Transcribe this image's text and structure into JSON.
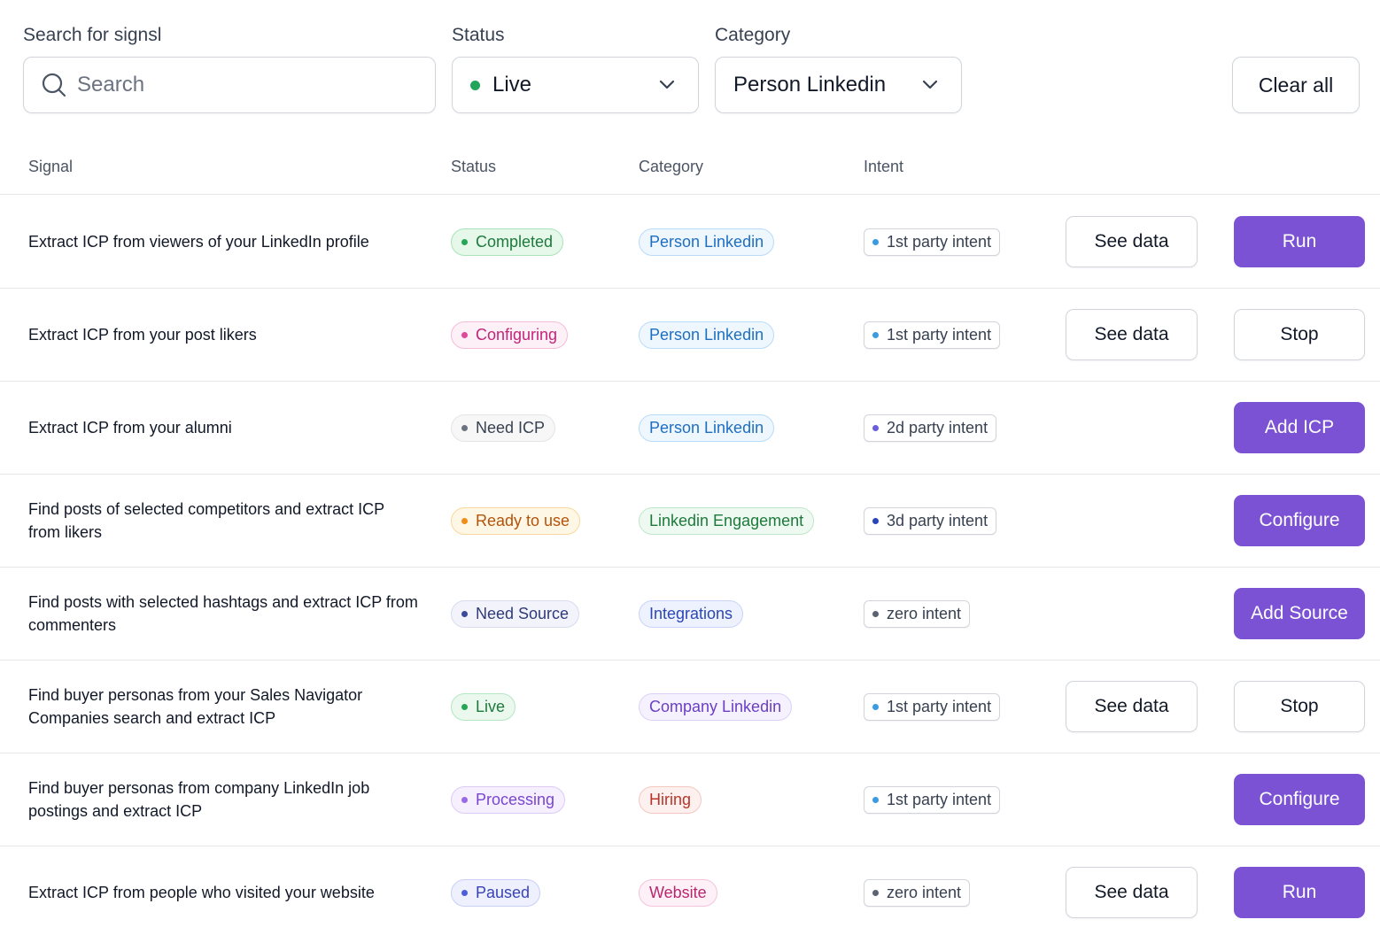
{
  "filters": {
    "search_label": "Search for signsl",
    "search_placeholder": "Search",
    "status_label": "Status",
    "status_value": "Live",
    "status_dot_color": "#22a55b",
    "category_label": "Category",
    "category_value": "Person Linkedin",
    "clear_label": "Clear all"
  },
  "table": {
    "headers": {
      "signal": "Signal",
      "status": "Status",
      "category": "Category",
      "intent": "Intent"
    },
    "rows": [
      {
        "signal": "Extract ICP from viewers of your LinkedIn profile",
        "status": "Completed",
        "category": "Person Linkedin",
        "intent": "1st party intent",
        "see_data": "See data",
        "action": "Run"
      },
      {
        "signal": "Extract ICP from your post likers",
        "status": "Configuring",
        "category": "Person Linkedin",
        "intent": "1st party intent",
        "see_data": "See data",
        "action": "Stop"
      },
      {
        "signal": "Extract ICP from your alumni",
        "status": "Need ICP",
        "category": "Person Linkedin",
        "intent": "2d party intent",
        "see_data": null,
        "action": "Add ICP"
      },
      {
        "signal": "Find posts of selected competitors and extract ICP from likers",
        "status": "Ready to use",
        "category": "Linkedin Engagement",
        "intent": "3d party intent",
        "see_data": null,
        "action": "Configure"
      },
      {
        "signal": "Find posts with selected hashtags and extract ICP from commenters",
        "status": "Need Source",
        "category": "Integrations",
        "intent": "zero intent",
        "see_data": null,
        "action": "Add Source"
      },
      {
        "signal": "Find buyer personas from your Sales Navigator Companies search and extract ICP",
        "status": "Live",
        "category": "Company Linkedin",
        "intent": "1st party intent",
        "see_data": "See data",
        "action": "Stop"
      },
      {
        "signal": "Find buyer personas from company LinkedIn job postings and extract ICP",
        "status": "Processing",
        "category": "Hiring",
        "intent": "1st party intent",
        "see_data": null,
        "action": "Configure"
      },
      {
        "signal": "Extract ICP from people who visited your website",
        "status": "Paused",
        "category": "Website",
        "intent": "zero intent",
        "see_data": "See data",
        "action": "Run"
      }
    ]
  },
  "styles": {
    "primary_button_color": "#7b52d4",
    "status": {
      "Completed": {
        "bg": "#e5f8ea",
        "border": "#a9e3b8",
        "text": "#1e7a3c",
        "dot": "#27a556"
      },
      "Configuring": {
        "bg": "#fdf0f6",
        "border": "#f5bcd8",
        "text": "#c0267a",
        "dot": "#e0489a"
      },
      "Need ICP": {
        "bg": "#f7f7f8",
        "border": "#e3e4e8",
        "text": "#374151",
        "dot": "#6b7280"
      },
      "Ready to use": {
        "bg": "#fff7e6",
        "border": "#f7d89a",
        "text": "#b45309",
        "dot": "#f08c1a"
      },
      "Need Source": {
        "bg": "#f3f4fb",
        "border": "#d8dbee",
        "text": "#2f3a7a",
        "dot": "#3b4a9a"
      },
      "Live": {
        "bg": "#ebf8ee",
        "border": "#b4e6c2",
        "text": "#1e7a3c",
        "dot": "#27a556"
      },
      "Processing": {
        "bg": "#f6f0fe",
        "border": "#dccaf7",
        "text": "#7a45d0",
        "dot": "#9a6ae6"
      },
      "Paused": {
        "bg": "#eef0fd",
        "border": "#c9cff5",
        "text": "#3843b8",
        "dot": "#4c5fd8"
      }
    },
    "category": {
      "Person Linkedin": {
        "bg": "#eef6fe",
        "border": "#b9dbf8",
        "text": "#1f6fc1"
      },
      "Linkedin Engagement": {
        "bg": "#eefaf1",
        "border": "#bfe6c9",
        "text": "#1e7a3c"
      },
      "Integrations": {
        "bg": "#eef2fe",
        "border": "#c8d3f7",
        "text": "#2b47b3"
      },
      "Company Linkedin": {
        "bg": "#f6f1fe",
        "border": "#ddd0f7",
        "text": "#6a3fc4"
      },
      "Hiring": {
        "bg": "#fdf1f0",
        "border": "#f4c7c0",
        "text": "#b8352a"
      },
      "Website": {
        "bg": "#fdf0f6",
        "border": "#f5c3dc",
        "text": "#b8266e"
      }
    },
    "intent_dot": {
      "1st party intent": "#3a9be0",
      "2d party intent": "#6a5fd8",
      "3d party intent": "#2945b8",
      "zero intent": "#5b6270"
    }
  }
}
